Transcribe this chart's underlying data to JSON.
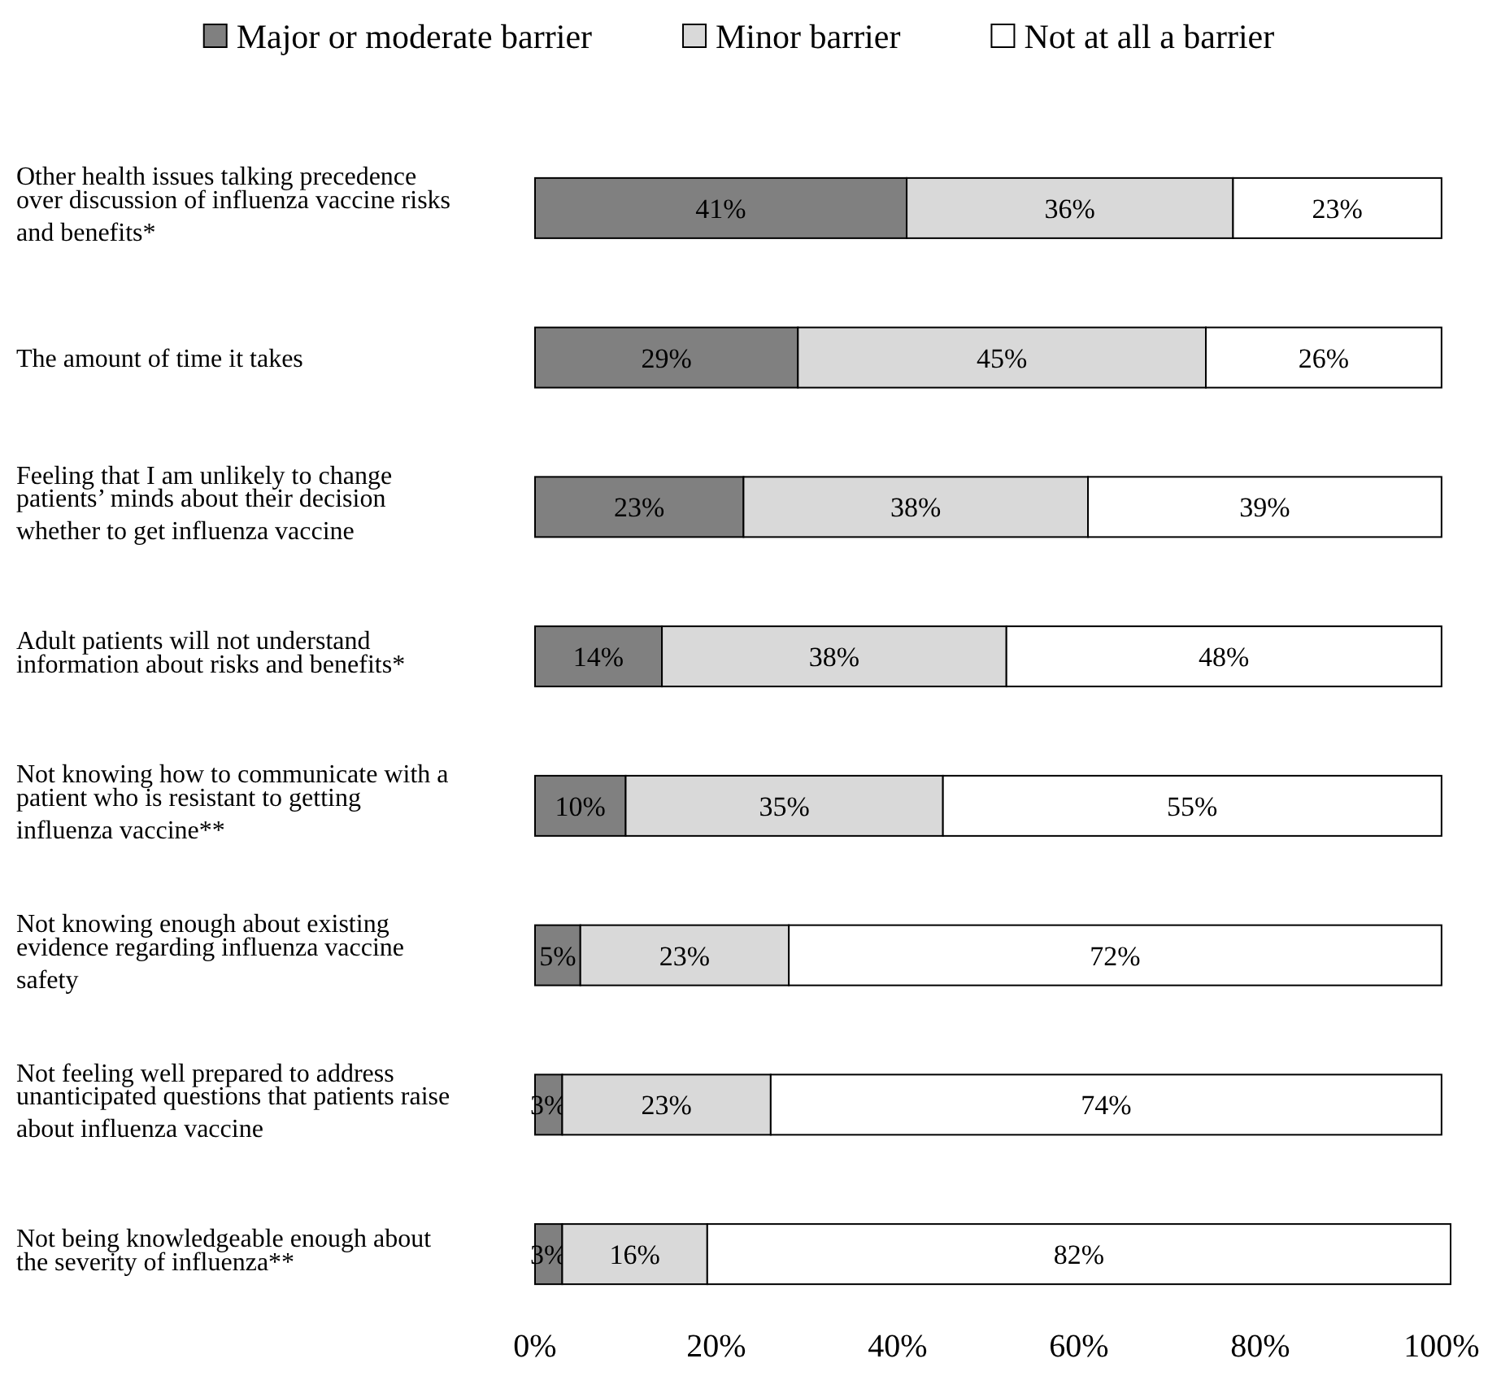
{
  "chart_data": {
    "type": "bar",
    "orientation": "horizontal",
    "stacked": true,
    "legend": "top",
    "grid": false,
    "categories": [
      "Other health issues talking precedence over discussion of influenza vaccine risks and benefits*",
      "The amount of time it takes",
      "Feeling that I am unlikely to change patients’ minds about their decision whether to get influenza vaccine",
      "Adult patients will not understand information about risks and benefits*",
      "Not knowing how to communicate with a patient who is resistant to getting influenza vaccine**",
      "Not knowing enough about existing evidence regarding influenza vaccine safety",
      "Not feeling well prepared to address unanticipated questions that patients raise about influenza vaccine",
      "Not being knowledgeable enough about the severity of influenza**"
    ],
    "series": [
      {
        "name": "Major or moderate barrier",
        "color": "#808080",
        "values": [
          41,
          29,
          23,
          14,
          10,
          5,
          3,
          3
        ],
        "value_labels": [
          "41%",
          "29%",
          "23%",
          "14%",
          "10%",
          "5%",
          "3%",
          "3%"
        ]
      },
      {
        "name": "Minor barrier",
        "color": "#d9d9d9",
        "values": [
          36,
          45,
          38,
          38,
          35,
          23,
          23,
          16
        ],
        "value_labels": [
          "36%",
          "45%",
          "38%",
          "38%",
          "35%",
          "23%",
          "23%",
          "16%"
        ]
      },
      {
        "name": "Not at all a barrier",
        "color": "#ffffff",
        "values": [
          23,
          26,
          39,
          48,
          55,
          72,
          74,
          82
        ],
        "value_labels": [
          "23%",
          "26%",
          "39%",
          "48%",
          "55%",
          "72%",
          "74%",
          "82%"
        ]
      }
    ],
    "xlim": [
      0,
      101
    ],
    "xticks": [
      {
        "value": 0,
        "label": "0%"
      },
      {
        "value": 20,
        "label": "20%"
      },
      {
        "value": 40,
        "label": "40%"
      },
      {
        "value": 60,
        "label": "60%"
      },
      {
        "value": 80,
        "label": "80%"
      },
      {
        "value": 100,
        "label": "100%"
      }
    ]
  }
}
